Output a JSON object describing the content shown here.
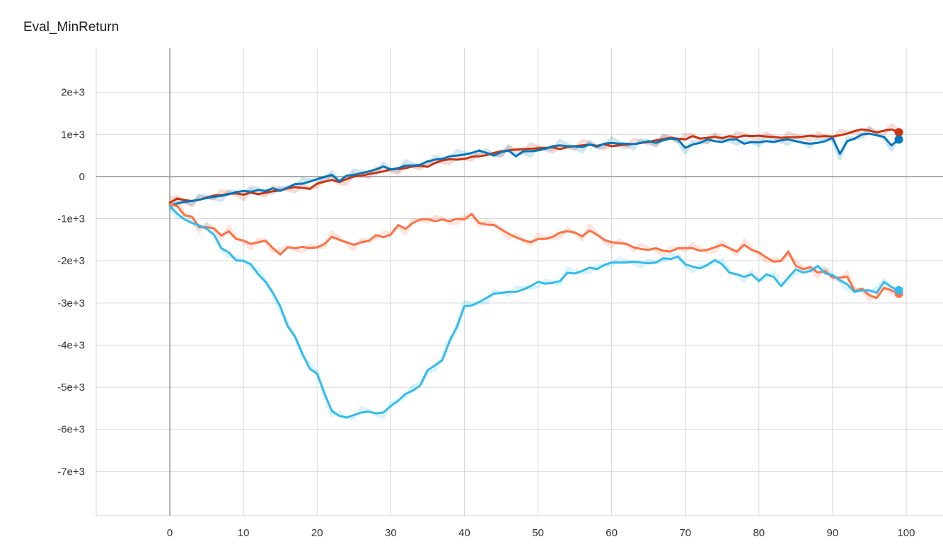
{
  "chart_data": {
    "type": "line",
    "title": "Eval_MinReturn",
    "xlabel": "",
    "ylabel": "",
    "xlim": [
      -10,
      105
    ],
    "ylim": [
      -8050,
      3050
    ],
    "x_ticks": [
      0,
      10,
      20,
      30,
      40,
      50,
      60,
      70,
      80,
      90,
      100
    ],
    "x_tick_labels": [
      "0",
      "10",
      "20",
      "30",
      "40",
      "50",
      "60",
      "70",
      "80",
      "90",
      "100"
    ],
    "y_ticks": [
      2000,
      1000,
      0,
      -1000,
      -2000,
      -3000,
      -4000,
      -5000,
      -6000,
      -7000
    ],
    "y_tick_labels": [
      "2e+3",
      "1e+3",
      "0",
      "-1e+3",
      "-2e+3",
      "-3e+3",
      "-4e+3",
      "-5e+3",
      "-6e+3",
      "-7e+3"
    ],
    "grid": true,
    "series": [
      {
        "color": "#cc3311",
        "x": [
          0,
          1,
          2,
          3,
          4,
          5,
          6,
          7,
          8,
          9,
          10,
          11,
          12,
          13,
          14,
          15,
          16,
          17,
          18,
          19,
          20,
          21,
          22,
          23,
          24,
          25,
          26,
          27,
          28,
          29,
          30,
          31,
          32,
          33,
          34,
          35,
          36,
          37,
          38,
          39,
          40,
          41,
          42,
          43,
          44,
          45,
          46,
          47,
          48,
          49,
          50,
          51,
          52,
          53,
          54,
          55,
          56,
          57,
          58,
          59,
          60,
          61,
          62,
          63,
          64,
          65,
          66,
          67,
          68,
          69,
          70,
          71,
          72,
          73,
          74,
          75,
          76,
          77,
          78,
          79,
          80,
          81,
          82,
          83,
          84,
          85,
          86,
          87,
          88,
          89,
          90,
          91,
          92,
          93,
          94,
          95,
          96,
          97,
          98,
          99
        ],
        "values": [
          -620,
          -520,
          -560,
          -580,
          -550,
          -500,
          -450,
          -440,
          -410,
          -400,
          -430,
          -380,
          -420,
          -380,
          -350,
          -330,
          -280,
          -250,
          -270,
          -290,
          -170,
          -120,
          -80,
          -130,
          -60,
          0,
          20,
          60,
          90,
          120,
          170,
          180,
          200,
          240,
          260,
          230,
          320,
          380,
          410,
          400,
          420,
          470,
          480,
          510,
          560,
          600,
          620,
          640,
          650,
          660,
          670,
          680,
          690,
          650,
          700,
          720,
          740,
          760,
          730,
          770,
          720,
          740,
          760,
          770,
          800,
          820,
          860,
          890,
          920,
          900,
          880,
          960,
          900,
          920,
          940,
          910,
          960,
          930,
          970,
          960,
          970,
          950,
          940,
          920,
          930,
          930,
          950,
          970,
          950,
          960,
          950,
          980,
          1020,
          1080,
          1120,
          1090,
          1050,
          1090,
          1120,
          1050
        ]
      },
      {
        "color": "#0077bb",
        "x": [
          0,
          1,
          2,
          3,
          4,
          5,
          6,
          7,
          8,
          9,
          10,
          11,
          12,
          13,
          14,
          15,
          16,
          17,
          18,
          19,
          20,
          21,
          22,
          23,
          24,
          25,
          26,
          27,
          28,
          29,
          30,
          31,
          32,
          33,
          34,
          35,
          36,
          37,
          38,
          39,
          40,
          41,
          42,
          43,
          44,
          45,
          46,
          47,
          48,
          49,
          50,
          51,
          52,
          53,
          54,
          55,
          56,
          57,
          58,
          59,
          60,
          61,
          62,
          63,
          64,
          65,
          66,
          67,
          68,
          69,
          70,
          71,
          72,
          73,
          74,
          75,
          76,
          77,
          78,
          79,
          80,
          81,
          82,
          83,
          84,
          85,
          86,
          87,
          88,
          89,
          90,
          91,
          92,
          93,
          94,
          95,
          96,
          97,
          98,
          99
        ],
        "values": [
          -680,
          -640,
          -600,
          -580,
          -550,
          -510,
          -480,
          -460,
          -420,
          -370,
          -340,
          -360,
          -320,
          -340,
          -280,
          -340,
          -260,
          -180,
          -170,
          -120,
          -60,
          -10,
          40,
          -110,
          20,
          40,
          80,
          120,
          170,
          240,
          170,
          200,
          260,
          260,
          280,
          360,
          400,
          420,
          480,
          500,
          520,
          560,
          620,
          560,
          500,
          580,
          620,
          480,
          600,
          600,
          620,
          660,
          720,
          740,
          720,
          720,
          700,
          760,
          710,
          780,
          800,
          780,
          780,
          770,
          800,
          840,
          800,
          860,
          900,
          880,
          680,
          760,
          800,
          880,
          840,
          820,
          880,
          880,
          780,
          820,
          810,
          840,
          820,
          860,
          880,
          840,
          800,
          780,
          800,
          840,
          920,
          540,
          840,
          900,
          1000,
          1020,
          980,
          940,
          740,
          880
        ]
      },
      {
        "color": "#ff7043",
        "x": [
          0,
          1,
          2,
          3,
          4,
          5,
          6,
          7,
          8,
          9,
          10,
          11,
          12,
          13,
          14,
          15,
          16,
          17,
          18,
          19,
          20,
          21,
          22,
          23,
          24,
          25,
          26,
          27,
          28,
          29,
          30,
          31,
          32,
          33,
          34,
          35,
          36,
          37,
          38,
          39,
          40,
          41,
          42,
          43,
          44,
          45,
          46,
          47,
          48,
          49,
          50,
          51,
          52,
          53,
          54,
          55,
          56,
          57,
          58,
          59,
          60,
          61,
          62,
          63,
          64,
          65,
          66,
          67,
          68,
          69,
          70,
          71,
          72,
          73,
          74,
          75,
          76,
          77,
          78,
          79,
          80,
          81,
          82,
          83,
          84,
          85,
          86,
          87,
          88,
          89,
          90,
          91,
          92,
          93,
          94,
          95,
          96,
          97,
          98,
          99
        ],
        "values": [
          -660,
          -700,
          -920,
          -950,
          -1200,
          -1200,
          -1230,
          -1400,
          -1300,
          -1480,
          -1520,
          -1600,
          -1560,
          -1520,
          -1700,
          -1850,
          -1680,
          -1700,
          -1670,
          -1700,
          -1680,
          -1600,
          -1430,
          -1500,
          -1560,
          -1620,
          -1560,
          -1530,
          -1390,
          -1440,
          -1380,
          -1150,
          -1240,
          -1100,
          -1020,
          -1010,
          -1060,
          -1020,
          -1060,
          -1000,
          -1020,
          -890,
          -1100,
          -1140,
          -1150,
          -1250,
          -1360,
          -1440,
          -1510,
          -1560,
          -1480,
          -1480,
          -1430,
          -1330,
          -1300,
          -1330,
          -1420,
          -1280,
          -1380,
          -1500,
          -1560,
          -1580,
          -1600,
          -1680,
          -1720,
          -1740,
          -1700,
          -1760,
          -1780,
          -1700,
          -1700,
          -1700,
          -1760,
          -1740,
          -1680,
          -1620,
          -1700,
          -1780,
          -1620,
          -1740,
          -1800,
          -1920,
          -2020,
          -2000,
          -1780,
          -2120,
          -2200,
          -2150,
          -2280,
          -2240,
          -2400,
          -2400,
          -2380,
          -2720,
          -2660,
          -2820,
          -2880,
          -2640,
          -2700,
          -2780
        ]
      },
      {
        "color": "#33bbee",
        "x": [
          0,
          1,
          2,
          3,
          4,
          5,
          6,
          7,
          8,
          9,
          10,
          11,
          12,
          13,
          14,
          15,
          16,
          17,
          18,
          19,
          20,
          21,
          22,
          23,
          24,
          25,
          26,
          27,
          28,
          29,
          30,
          31,
          32,
          33,
          34,
          35,
          36,
          37,
          38,
          39,
          40,
          41,
          42,
          43,
          44,
          45,
          46,
          47,
          48,
          49,
          50,
          51,
          52,
          53,
          54,
          55,
          56,
          57,
          58,
          59,
          60,
          61,
          62,
          63,
          64,
          65,
          66,
          67,
          68,
          69,
          70,
          71,
          72,
          73,
          74,
          75,
          76,
          77,
          78,
          79,
          80,
          81,
          82,
          83,
          84,
          85,
          86,
          87,
          88,
          89,
          90,
          91,
          92,
          93,
          94,
          95,
          96,
          97,
          98,
          99
        ],
        "values": [
          -700,
          -880,
          -1020,
          -1100,
          -1160,
          -1240,
          -1380,
          -1700,
          -1800,
          -1990,
          -2000,
          -2080,
          -2320,
          -2500,
          -2760,
          -3080,
          -3550,
          -3800,
          -4200,
          -4560,
          -4680,
          -5150,
          -5560,
          -5680,
          -5720,
          -5660,
          -5600,
          -5580,
          -5620,
          -5600,
          -5450,
          -5320,
          -5160,
          -5080,
          -4960,
          -4600,
          -4480,
          -4360,
          -3900,
          -3560,
          -3080,
          -3060,
          -2980,
          -2880,
          -2780,
          -2760,
          -2740,
          -2740,
          -2680,
          -2600,
          -2500,
          -2540,
          -2520,
          -2480,
          -2280,
          -2300,
          -2240,
          -2160,
          -2200,
          -2100,
          -2040,
          -2040,
          -2040,
          -2020,
          -2040,
          -2060,
          -2040,
          -1940,
          -1960,
          -1900,
          -2080,
          -2140,
          -2180,
          -2100,
          -1980,
          -2080,
          -2280,
          -2320,
          -2380,
          -2320,
          -2480,
          -2320,
          -2380,
          -2600,
          -2400,
          -2200,
          -2280,
          -2240,
          -2120,
          -2300,
          -2340,
          -2460,
          -2560,
          -2740,
          -2700,
          -2700,
          -2760,
          -2500,
          -2620,
          -2700
        ]
      }
    ]
  }
}
